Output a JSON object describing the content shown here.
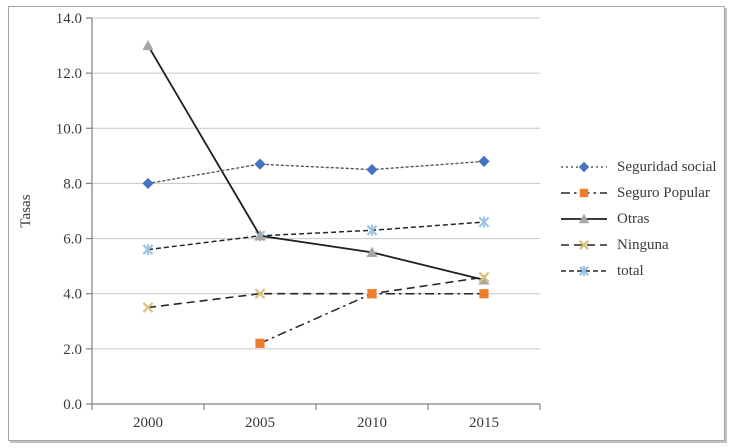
{
  "figure": {
    "background": "#ffffff",
    "border_color": "#a6a6a6"
  },
  "chart_data": {
    "type": "line",
    "title": "",
    "xlabel": "",
    "ylabel": "Tasas",
    "categories": [
      "2000",
      "2005",
      "2010",
      "2015"
    ],
    "ylim": [
      0,
      14
    ],
    "y_ticks": [
      0,
      2,
      4,
      6,
      8,
      10,
      12,
      14
    ],
    "y_tick_labels": [
      "0.0",
      "2.0",
      "4.0",
      "6.0",
      "8.0",
      "10.0",
      "12.0",
      "14.0"
    ],
    "grid": "horizontal",
    "legend_position": "right",
    "series": [
      {
        "name": "Seguridad social",
        "values": [
          8.0,
          8.7,
          8.5,
          8.8
        ],
        "color": "#4472c4",
        "marker": "diamond",
        "line_style": "dotted",
        "line_color": "#595959"
      },
      {
        "name": "Seguro Popular",
        "values": [
          null,
          2.2,
          4.0,
          4.0
        ],
        "color": "#ed7d31",
        "marker": "square",
        "line_style": "dashdot",
        "line_color": "#262626"
      },
      {
        "name": "Otras",
        "values": [
          13.0,
          6.1,
          5.5,
          4.5
        ],
        "color": "#a6a6a6",
        "marker": "triangle",
        "line_style": "solid",
        "line_color": "#1f1f1f"
      },
      {
        "name": "Ninguna",
        "values": [
          3.5,
          4.0,
          4.0,
          4.6
        ],
        "color": "#d9c27e",
        "marker": "x",
        "line_style": "dashed",
        "line_color": "#262626"
      },
      {
        "name": "total",
        "values": [
          5.6,
          6.1,
          6.3,
          6.6
        ],
        "color": "#9dc3e6",
        "marker": "x-star",
        "line_style": "dashed-short",
        "line_color": "#262626"
      }
    ],
    "draw_order": [
      4,
      2,
      3,
      1,
      0
    ],
    "style": {
      "axis_color": "#808080",
      "grid_color": "#c6c6c6",
      "tick_text_color": "#3b3b3b"
    }
  }
}
